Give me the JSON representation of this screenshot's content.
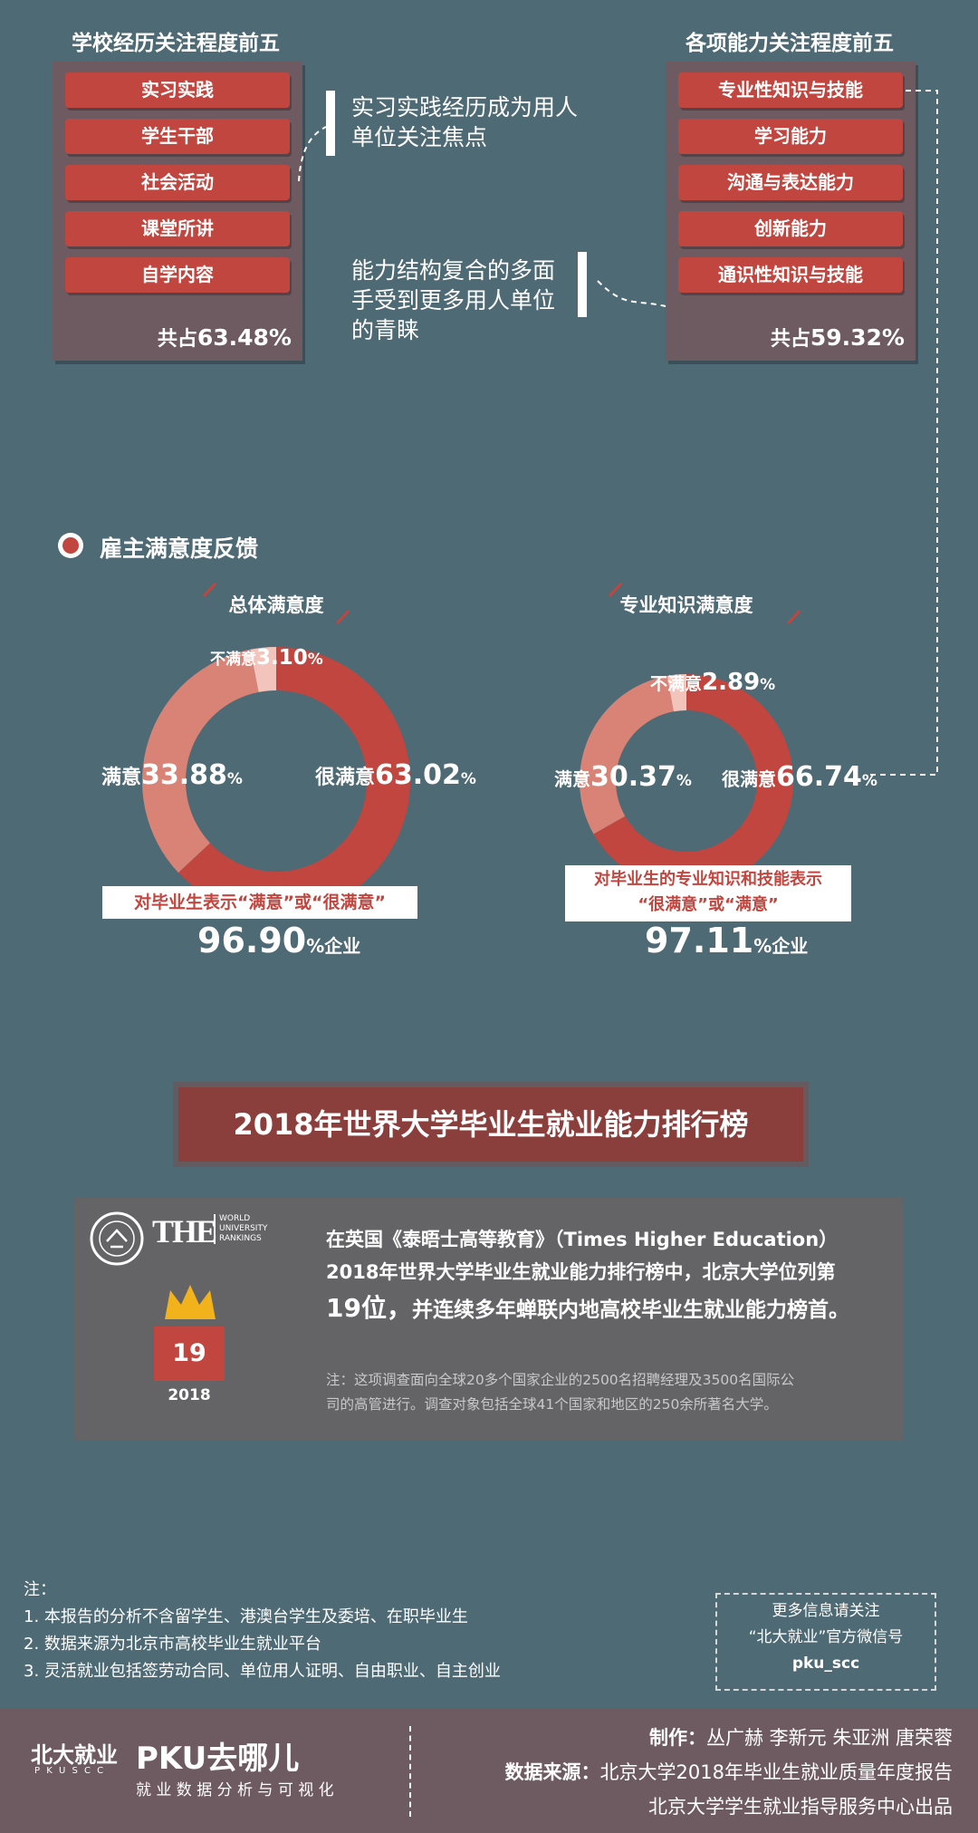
{
  "school_exp": {
    "title": "学校经历关注程度前五",
    "items": [
      "实习实践",
      "学生干部",
      "社会活动",
      "课堂所讲",
      "自学内容"
    ],
    "total_prefix": "共占",
    "total_value": "63.48%"
  },
  "abilities": {
    "title": "各项能力关注程度前五",
    "items": [
      "专业性知识与技能",
      "学习能力",
      "沟通与表达能力",
      "创新能力",
      "通识性知识与技能"
    ],
    "total_prefix": "共占",
    "total_value": "59.32%"
  },
  "callouts": {
    "top_line1": "实习实践经历成为用人",
    "top_line2": "单位关注焦点",
    "mid_line1": "能力结构复合的多面",
    "mid_line2": "手受到更多用人单位",
    "mid_line3": "的青睐"
  },
  "satisfaction": {
    "heading": "雇主满意度反馈"
  },
  "chart_data": [
    {
      "type": "pie",
      "title": "总体满意度",
      "categories": [
        "很满意",
        "满意",
        "不满意"
      ],
      "values": [
        63.02,
        33.88,
        3.1
      ],
      "labels": [
        "很满意",
        "满意",
        "不满意"
      ],
      "value_labels": [
        "63.02",
        "33.88",
        "3.10"
      ],
      "unit": "%",
      "colors": [
        "#c0463f",
        "#d98276",
        "#f2c4bb"
      ],
      "banner": "对毕业生表示“满意”或“很满意”",
      "summary_value": "96.90",
      "summary_unit": "%企业"
    },
    {
      "type": "pie",
      "title": "专业知识满意度",
      "categories": [
        "很满意",
        "满意",
        "不满意"
      ],
      "values": [
        66.74,
        30.37,
        2.89
      ],
      "labels": [
        "很满意",
        "满意",
        "不满意"
      ],
      "value_labels": [
        "66.74",
        "30.37",
        "2.89"
      ],
      "unit": "%",
      "colors": [
        "#c0463f",
        "#d98276",
        "#f2c4bb"
      ],
      "banner_line1": "对毕业生的专业知识和技能表示",
      "banner_line2": "“很满意”或“满意”",
      "summary_value": "97.11",
      "summary_unit": "%企业"
    }
  ],
  "ranking": {
    "title": "2018年世界大学毕业生就业能力排行榜",
    "the_logo": "THE",
    "the_sub1": "WORLD",
    "the_sub2": "UNIVERSITY",
    "the_sub3": "RANKINGS",
    "rank": "19",
    "year": "2018",
    "line1": "在英国《泰晤士高等教育》（Times Higher Education）",
    "line2": "2018年世界大学毕业生就业能力排行榜中，北京大学位列第",
    "line3_num": "19位，",
    "line3_rest": "并连续多年蝉联内地高校毕业生就业能力榜首。",
    "note_line1": "注：这项调查面向全球20多个国家企业的2500名招聘经理及3500名国际公",
    "note_line2": "司的高管进行。调查对象包括全球41个国家和地区的250余所著名大学。"
  },
  "notes": {
    "heading": "注：",
    "items": [
      "1.  本报告的分析不含留学生、港澳台学生及委培、在职毕业生",
      "2.  数据来源为北京市高校毕业生就业平台",
      "3.  灵活就业包括签劳动合同、单位用人证明、自由职业、自主创业"
    ]
  },
  "follow": {
    "line1": "更多信息请关注",
    "line2": "“北大就业”官方微信号",
    "line3": "pku_scc"
  },
  "footer": {
    "logo_cn": "北大就业",
    "logo_en": "P K U S C C",
    "brand": "PKU去哪儿",
    "brand_sub": "就 业 数 据 分 析 与 可 视 化",
    "credits_label": "制作：",
    "credits": "丛广赫 李新元 朱亚洲 唐荣蓉",
    "source_label": "数据来源：",
    "source": "北京大学2018年毕业生就业质量年度报告",
    "producer": "北京大学学生就业指导服务中心出品"
  }
}
